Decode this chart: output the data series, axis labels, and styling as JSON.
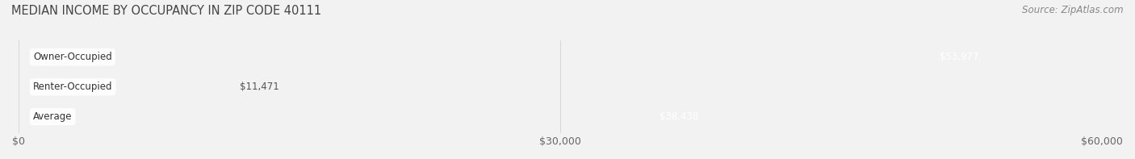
{
  "title": "MEDIAN INCOME BY OCCUPANCY IN ZIP CODE 40111",
  "source": "Source: ZipAtlas.com",
  "categories": [
    "Owner-Occupied",
    "Renter-Occupied",
    "Average"
  ],
  "values": [
    53977,
    11471,
    38438
  ],
  "bar_colors": [
    "#2ab5bc",
    "#c4a8cc",
    "#f5b96e"
  ],
  "bar_bg_color": "#e0e0e0",
  "x_max": 60000,
  "x_ticks": [
    0,
    30000,
    60000
  ],
  "x_tick_labels": [
    "$0",
    "$30,000",
    "$60,000"
  ],
  "value_labels": [
    "$53,977",
    "$11,471",
    "$38,438"
  ],
  "title_fontsize": 10.5,
  "source_fontsize": 8.5,
  "label_fontsize": 8.5,
  "value_fontsize": 8.5,
  "background_color": "#f2f2f2",
  "bar_height": 0.62,
  "figwidth": 14.06,
  "figheight": 1.97,
  "dpi": 100
}
